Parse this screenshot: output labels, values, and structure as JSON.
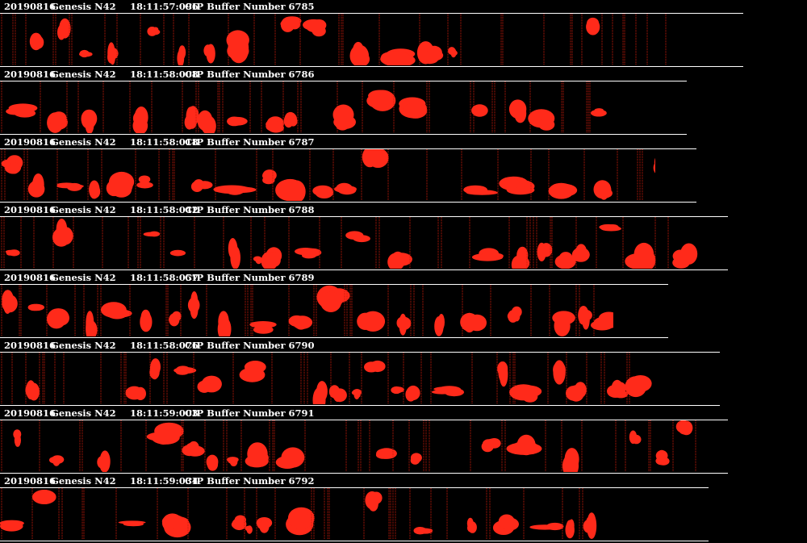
{
  "buffers": [
    {
      "date": "20190816",
      "probe": "Genesis N42",
      "time": "18:11:57:096",
      "label": "CIP Buffer Number 6785",
      "strip_width": 0.921,
      "data_width": 0.838
    },
    {
      "date": "20190816",
      "probe": "Genesis N42",
      "time": "18:11:58:008",
      "label": "CIP Buffer Number 6786",
      "strip_width": 0.851,
      "data_width": 0.757
    },
    {
      "date": "20190816",
      "probe": "Genesis N42",
      "time": "18:11:58:018",
      "label": "CIP Buffer Number 6787",
      "strip_width": 0.863,
      "data_width": 0.812
    },
    {
      "date": "20190816",
      "probe": "Genesis N42",
      "time": "18:11:58:042",
      "label": "CIP Buffer Number 6788",
      "strip_width": 0.902,
      "data_width": 0.865
    },
    {
      "date": "20190816",
      "probe": "Genesis N42",
      "time": "18:11:58:057",
      "label": "CIP Buffer Number 6789",
      "strip_width": 0.828,
      "data_width": 0.76
    },
    {
      "date": "20190816",
      "probe": "Genesis N42",
      "time": "18:11:58:076",
      "label": "CIP Buffer Number 6790",
      "strip_width": 0.892,
      "data_width": 0.808
    },
    {
      "date": "20190816",
      "probe": "Genesis N42",
      "time": "18:11:59:003",
      "label": "CIP Buffer Number 6791",
      "strip_width": 0.902,
      "data_width": 0.868
    },
    {
      "date": "20190816",
      "probe": "Genesis N42",
      "time": "18:11:59:034",
      "label": "CIP Buffer Number 6792",
      "strip_width": 0.878,
      "data_width": 0.742
    }
  ],
  "colors": {
    "background": "#000000",
    "header_text": "#ffffff",
    "rule": "#ffffff",
    "particle": "#ff2a1a",
    "divider": "#c81a0a"
  }
}
